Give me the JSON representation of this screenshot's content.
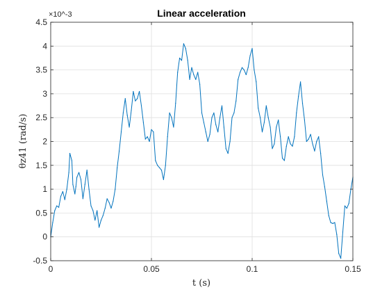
{
  "chart_data": {
    "type": "line",
    "title": "Linear acceleration",
    "xlabel": "t (s)",
    "ylabel": "θz41 (rad/s)",
    "y_exponent_label": "×10^-3",
    "xlim": [
      0,
      0.15
    ],
    "ylim": [
      -0.5,
      4.5
    ],
    "xticks": [
      0,
      0.05,
      0.1,
      0.15
    ],
    "xtick_labels": [
      "0",
      "0.05",
      "0.1",
      "0.15"
    ],
    "yticks": [
      -0.5,
      0,
      0.5,
      1,
      1.5,
      2,
      2.5,
      3,
      3.5,
      4,
      4.5
    ],
    "ytick_labels": [
      "-0.5",
      "0",
      "0.5",
      "1",
      "1.5",
      "2",
      "2.5",
      "3",
      "3.5",
      "4",
      "4.5"
    ],
    "grid": true,
    "series": [
      {
        "color": "#0072BD",
        "x": [
          0.0,
          0.001,
          0.002,
          0.003,
          0.004,
          0.005,
          0.006,
          0.007,
          0.008,
          0.009,
          0.0095,
          0.0105,
          0.011,
          0.012,
          0.0125,
          0.013,
          0.014,
          0.015,
          0.016,
          0.017,
          0.018,
          0.019,
          0.02,
          0.021,
          0.022,
          0.023,
          0.024,
          0.025,
          0.026,
          0.027,
          0.028,
          0.029,
          0.03,
          0.031,
          0.032,
          0.033,
          0.034,
          0.035,
          0.036,
          0.037,
          0.038,
          0.039,
          0.04,
          0.041,
          0.042,
          0.043,
          0.044,
          0.045,
          0.046,
          0.047,
          0.048,
          0.049,
          0.05,
          0.051,
          0.052,
          0.053,
          0.054,
          0.055,
          0.056,
          0.057,
          0.058,
          0.059,
          0.06,
          0.061,
          0.062,
          0.063,
          0.064,
          0.065,
          0.066,
          0.067,
          0.068,
          0.069,
          0.07,
          0.071,
          0.072,
          0.073,
          0.074,
          0.075,
          0.076,
          0.077,
          0.078,
          0.079,
          0.08,
          0.081,
          0.082,
          0.083,
          0.084,
          0.085,
          0.086,
          0.087,
          0.088,
          0.089,
          0.09,
          0.091,
          0.092,
          0.093,
          0.094,
          0.095,
          0.096,
          0.097,
          0.098,
          0.099,
          0.1,
          0.101,
          0.102,
          0.103,
          0.104,
          0.105,
          0.106,
          0.107,
          0.108,
          0.109,
          0.11,
          0.111,
          0.112,
          0.113,
          0.114,
          0.115,
          0.116,
          0.117,
          0.118,
          0.119,
          0.12,
          0.121,
          0.122,
          0.123,
          0.124,
          0.125,
          0.126,
          0.127,
          0.128,
          0.129,
          0.13,
          0.131,
          0.132,
          0.133,
          0.134,
          0.135,
          0.136,
          0.137,
          0.138,
          0.139,
          0.14,
          0.141,
          0.142,
          0.143,
          0.144,
          0.145,
          0.146,
          0.147,
          0.148,
          0.149,
          0.15
        ],
        "y": [
          0.0,
          0.3,
          0.55,
          0.65,
          0.62,
          0.85,
          0.95,
          0.78,
          1.0,
          1.35,
          1.75,
          1.6,
          1.1,
          0.9,
          1.05,
          1.25,
          1.35,
          1.2,
          0.8,
          1.1,
          1.4,
          1.0,
          0.65,
          0.55,
          0.35,
          0.55,
          0.2,
          0.35,
          0.45,
          0.6,
          0.8,
          0.72,
          0.6,
          0.75,
          1.0,
          1.45,
          1.8,
          2.2,
          2.6,
          2.9,
          2.55,
          2.3,
          2.65,
          3.05,
          2.85,
          2.9,
          3.05,
          2.75,
          2.4,
          2.05,
          2.1,
          2.0,
          2.25,
          2.2,
          1.6,
          1.5,
          1.45,
          1.4,
          1.2,
          1.5,
          2.1,
          2.6,
          2.5,
          2.3,
          2.8,
          3.45,
          3.75,
          3.7,
          4.05,
          3.95,
          3.7,
          3.3,
          3.55,
          3.4,
          3.3,
          3.45,
          3.2,
          2.6,
          2.4,
          2.2,
          2.0,
          2.15,
          2.5,
          2.6,
          2.35,
          2.2,
          2.5,
          2.75,
          2.3,
          1.85,
          1.75,
          2.0,
          2.5,
          2.6,
          2.85,
          3.3,
          3.45,
          3.55,
          3.5,
          3.4,
          3.55,
          3.8,
          3.95,
          3.5,
          3.25,
          2.7,
          2.5,
          2.2,
          2.4,
          2.75,
          2.5,
          2.3,
          1.85,
          1.95,
          2.3,
          2.45,
          2.1,
          1.65,
          1.6,
          1.9,
          2.1,
          1.95,
          1.9,
          2.1,
          2.6,
          2.95,
          3.25,
          2.8,
          2.45,
          2.0,
          2.05,
          2.15,
          1.95,
          1.8,
          2.0,
          2.1,
          1.75,
          1.3,
          1.05,
          0.75,
          0.45,
          0.3,
          0.28,
          0.3,
          0.05,
          -0.35,
          -0.45,
          0.1,
          0.65,
          0.6,
          0.7,
          1.0,
          1.25
        ]
      }
    ]
  }
}
